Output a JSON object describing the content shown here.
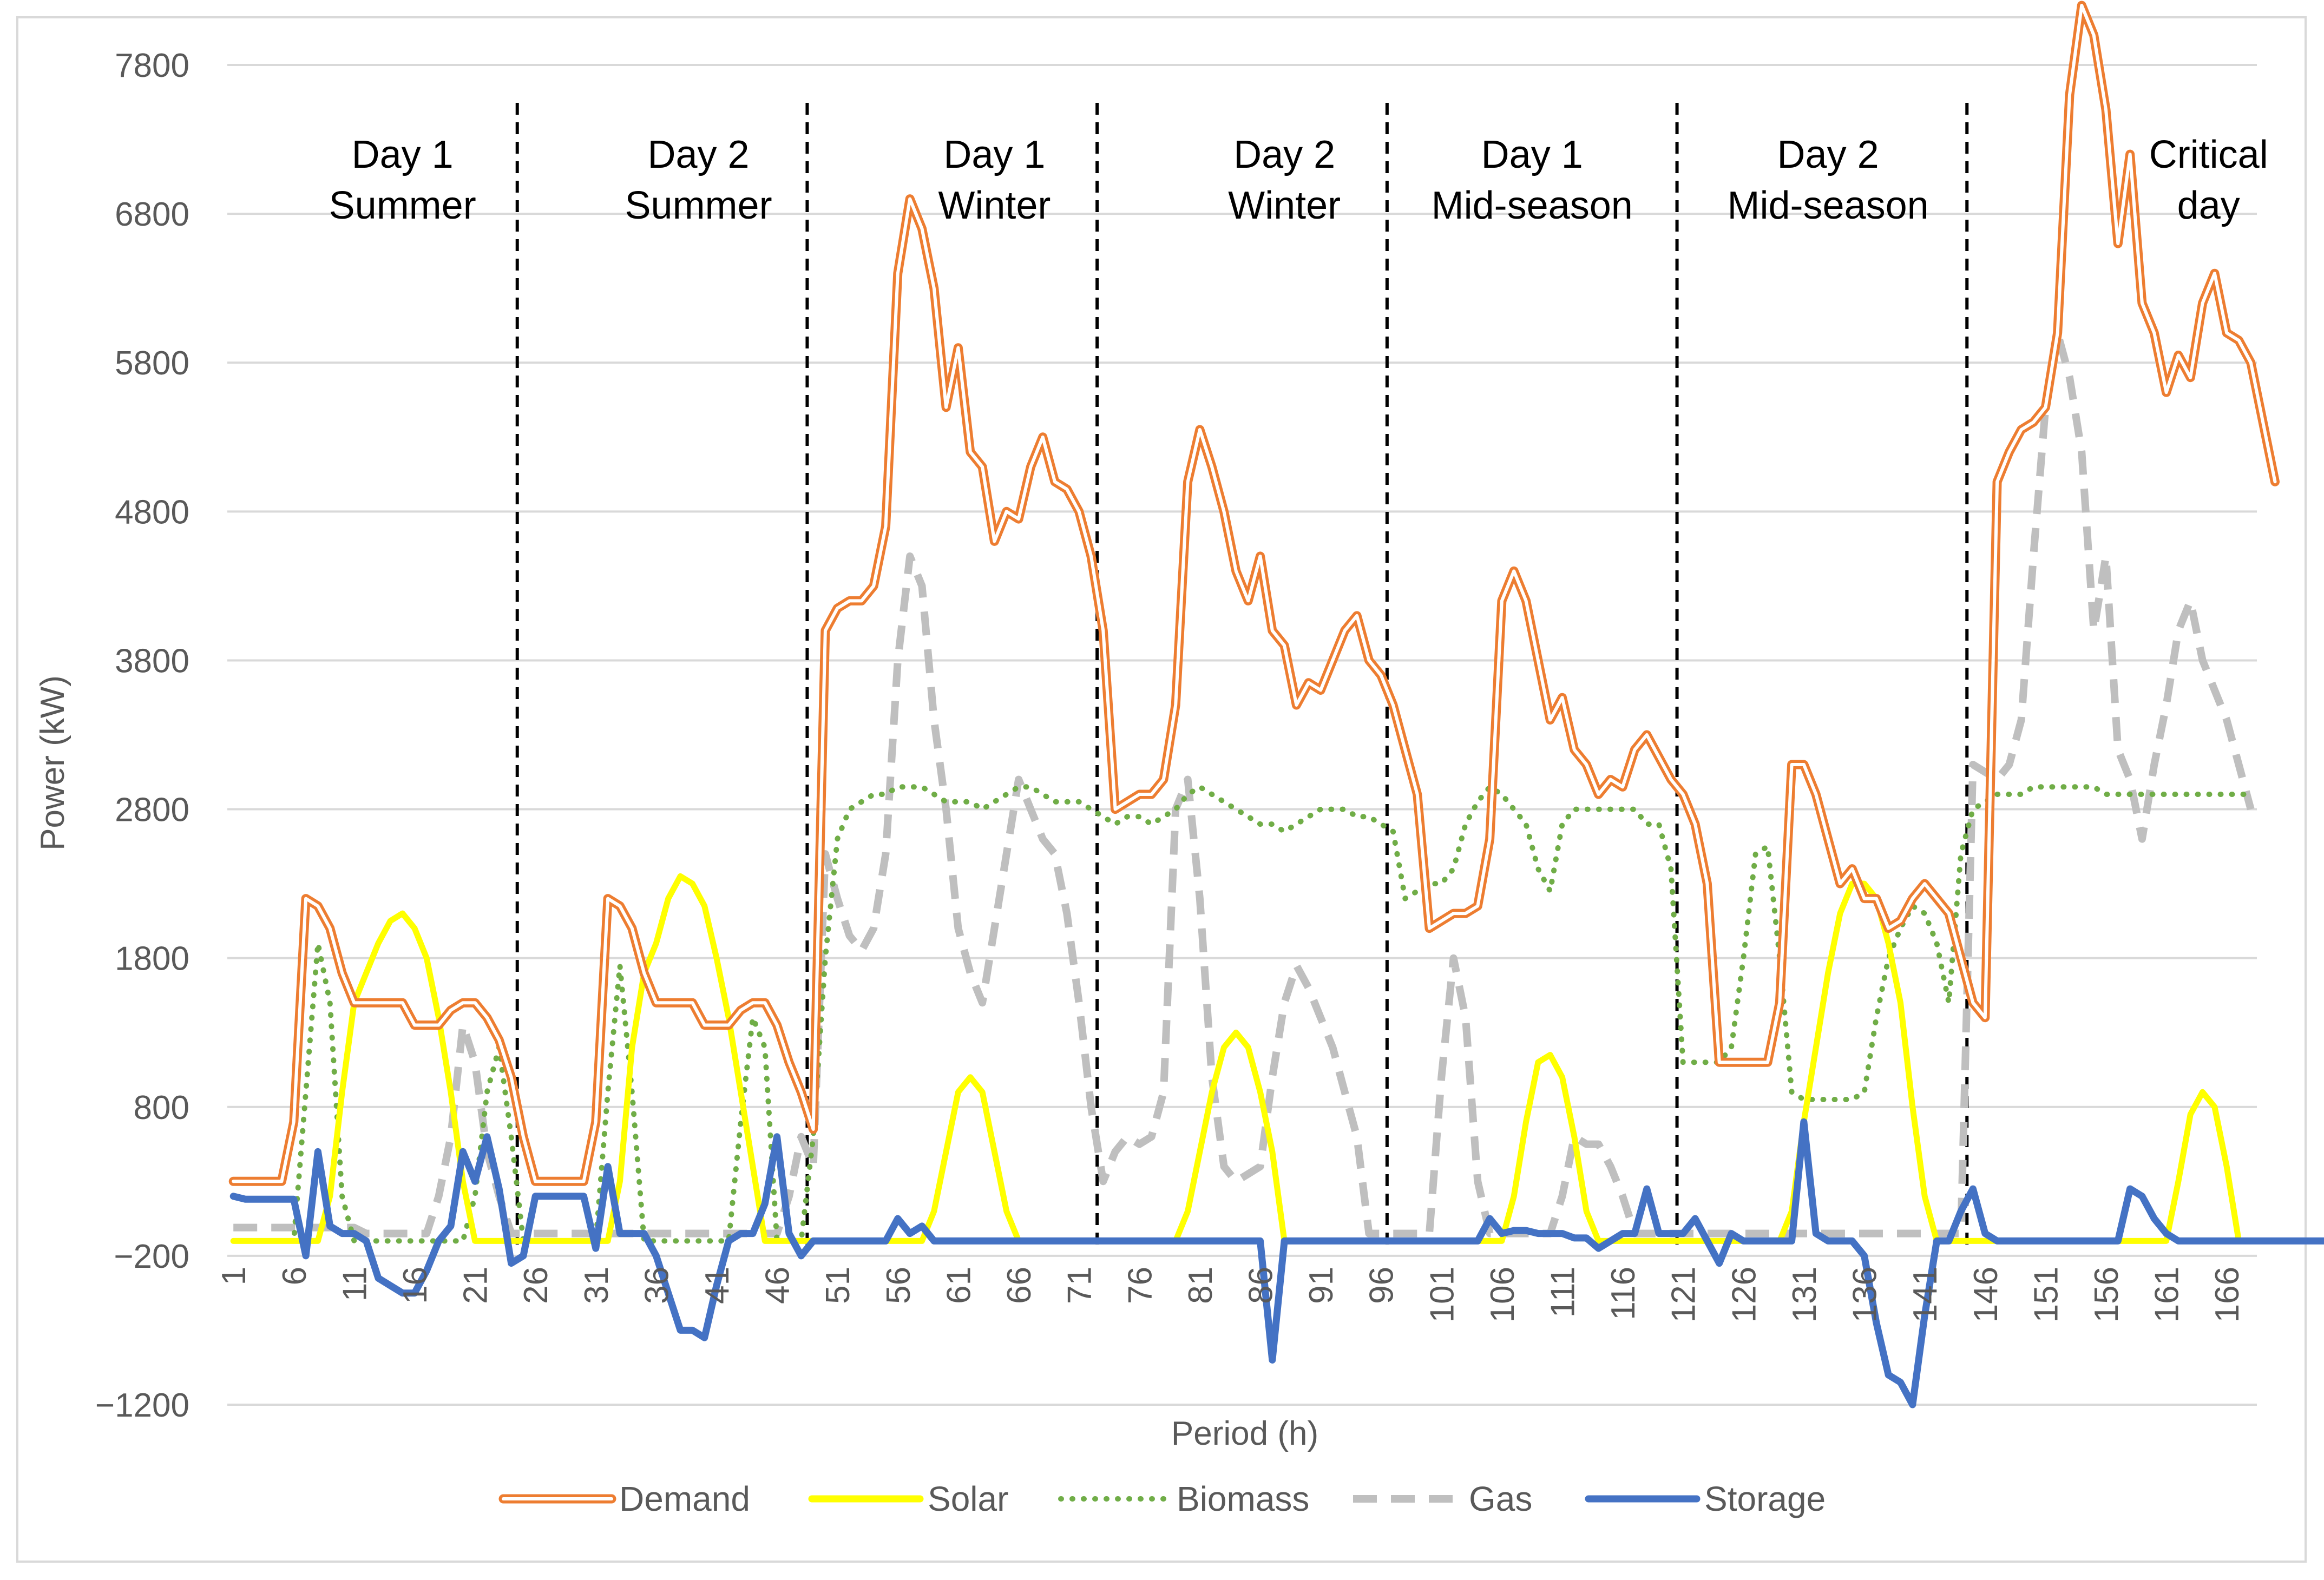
{
  "chart_data": {
    "type": "line",
    "xlabel": "Period (h)",
    "ylabel": "Power (kW)",
    "xlim": [
      1,
      168
    ],
    "ylim": [
      -1200,
      8200
    ],
    "y_ticks": [
      "−1200",
      "−200",
      "800",
      "1800",
      "2800",
      "3800",
      "4800",
      "5800",
      "6800",
      "7800"
    ],
    "y_tick_values": [
      -1200,
      -200,
      800,
      1800,
      2800,
      3800,
      4800,
      5800,
      6800,
      7800
    ],
    "x_ticks": [
      "1",
      "6",
      "11",
      "16",
      "21",
      "26",
      "31",
      "36",
      "41",
      "46",
      "51",
      "56",
      "61",
      "66",
      "71",
      "76",
      "81",
      "86",
      "91",
      "96",
      "101",
      "106",
      "111",
      "116",
      "121",
      "126",
      "131",
      "136",
      "141",
      "146",
      "151",
      "156",
      "161",
      "166"
    ],
    "x_tick_values": [
      1,
      6,
      11,
      16,
      21,
      26,
      31,
      36,
      41,
      46,
      51,
      56,
      61,
      66,
      71,
      76,
      81,
      86,
      91,
      96,
      101,
      106,
      111,
      116,
      121,
      126,
      131,
      136,
      141,
      146,
      151,
      156,
      161,
      166
    ],
    "gridlines": "horizontal",
    "legend_position": "bottom",
    "day_separators": [
      24.5,
      48.5,
      72.5,
      96.5,
      120.5,
      144.5
    ],
    "day_labels": [
      {
        "line1": "Day 1",
        "line2": "Summer",
        "center": 15
      },
      {
        "line1": "Day 2",
        "line2": "Summer",
        "center": 39.5
      },
      {
        "line1": "Day 1",
        "line2": "Winter",
        "center": 64
      },
      {
        "line1": "Day 2",
        "line2": "Winter",
        "center": 88
      },
      {
        "line1": "Day 1",
        "line2": "Mid-season",
        "center": 108.5
      },
      {
        "line1": "Day 2",
        "line2": "Mid-season",
        "center": 133
      },
      {
        "line1": "Critical",
        "line2": "day",
        "center": 164.5
      }
    ],
    "series": [
      {
        "name": "Demand",
        "color": "#ed7d31",
        "style": "double",
        "values": [
          300,
          300,
          300,
          300,
          300,
          700,
          2200,
          2150,
          2000,
          1700,
          1500,
          1500,
          1500,
          1500,
          1500,
          1350,
          1350,
          1350,
          1450,
          1500,
          1500,
          1400,
          1250,
          1000,
          600,
          300,
          300,
          300,
          300,
          300,
          700,
          2200,
          2150,
          2000,
          1700,
          1500,
          1500,
          1500,
          1500,
          1350,
          1350,
          1350,
          1450,
          1500,
          1500,
          1350,
          1100,
          900,
          650,
          4000,
          4150,
          4200,
          4200,
          4300,
          4700,
          6400,
          6900,
          6700,
          6300,
          5500,
          5900,
          5200,
          5100,
          4600,
          4800,
          4750,
          5100,
          5300,
          5000,
          4950,
          4800,
          4500,
          4000,
          2800,
          2850,
          2900,
          2900,
          3000,
          3500,
          5000,
          5350,
          5100,
          4800,
          4400,
          4200,
          4500,
          4000,
          3900,
          3500,
          3650,
          3600,
          3800,
          4000,
          4100,
          3800,
          3700,
          3500,
          3200,
          2900,
          2000,
          2050,
          2100,
          2100,
          2150,
          2600,
          4200,
          4400,
          4200,
          3800,
          3400,
          3550,
          3200,
          3100,
          2900,
          3000,
          2950,
          3200,
          3300,
          3150,
          3000,
          2900,
          2700,
          2300,
          1100,
          1100,
          1100,
          1100,
          1100,
          1500,
          3100,
          3100,
          2900,
          2600,
          2300,
          2400,
          2200,
          2200,
          2000,
          2050,
          2200,
          2300,
          2200,
          2100,
          1800,
          1500,
          1400,
          5000,
          5200,
          5350,
          5400,
          5500,
          6000,
          7600,
          8200,
          8000,
          7500,
          6600,
          7200,
          6200,
          6000,
          5600,
          5850,
          5700,
          6200,
          6400,
          6000,
          5950,
          5800,
          5400,
          5000
        ]
      },
      {
        "name": "Solar",
        "color": "#ffff00",
        "style": "solid",
        "values": [
          -100,
          -100,
          -100,
          -100,
          -100,
          -100,
          -100,
          -100,
          200,
          900,
          1500,
          1700,
          1900,
          2050,
          2100,
          2000,
          1800,
          1400,
          900,
          300,
          -100,
          -100,
          -100,
          -100,
          -100,
          -100,
          -100,
          -100,
          -100,
          -100,
          -100,
          -100,
          300,
          1200,
          1700,
          1900,
          2200,
          2350,
          2300,
          2150,
          1800,
          1400,
          900,
          400,
          -100,
          -100,
          -100,
          -100,
          -100,
          -100,
          -100,
          -100,
          -100,
          -100,
          -100,
          -100,
          -100,
          -100,
          100,
          500,
          900,
          1000,
          900,
          500,
          100,
          -100,
          -100,
          -100,
          -100,
          -100,
          -100,
          -100,
          -100,
          -100,
          -100,
          -100,
          -100,
          -100,
          -100,
          100,
          500,
          900,
          1200,
          1300,
          1200,
          900,
          500,
          -100,
          -100,
          -100,
          -100,
          -100,
          -100,
          -100,
          -100,
          -100,
          -100,
          -100,
          -100,
          -100,
          -100,
          -100,
          -100,
          -100,
          -100,
          -100,
          200,
          700,
          1100,
          1150,
          1000,
          600,
          100,
          -100,
          -100,
          -100,
          -100,
          -100,
          -100,
          -100,
          -100,
          -100,
          -100,
          -100,
          -100,
          -100,
          -100,
          -100,
          -100,
          100,
          700,
          1200,
          1700,
          2100,
          2300,
          2300,
          2200,
          1900,
          1500,
          800,
          200,
          -100,
          -100,
          -100,
          -100,
          -100,
          -100,
          -100,
          -100,
          -100,
          -100,
          -100,
          -100,
          -100,
          -100,
          -100,
          -100,
          -100,
          -100,
          -100,
          -100,
          300,
          750,
          900,
          800,
          400,
          -100,
          -100,
          -100,
          -100,
          -100,
          -100,
          -100,
          -100,
          -100
        ]
      },
      {
        "name": "Biomass",
        "color": "#70ad47",
        "style": "dotted",
        "values": [
          -100,
          -100,
          -100,
          -100,
          -100,
          -100,
          900,
          1900,
          1500,
          200,
          -100,
          -100,
          -100,
          -100,
          -100,
          -100,
          -100,
          -100,
          -100,
          -100,
          200,
          900,
          1200,
          600,
          -100,
          -100,
          -100,
          -100,
          -100,
          -100,
          -100,
          900,
          1750,
          900,
          -100,
          -100,
          -100,
          -100,
          -100,
          -100,
          -100,
          -100,
          700,
          1400,
          1200,
          -100,
          -100,
          -100,
          600,
          1800,
          2600,
          2800,
          2850,
          2900,
          2900,
          2950,
          2950,
          2950,
          2900,
          2850,
          2850,
          2850,
          2800,
          2850,
          2900,
          2950,
          2950,
          2900,
          2850,
          2850,
          2850,
          2800,
          2750,
          2700,
          2750,
          2750,
          2700,
          2750,
          2800,
          2900,
          2950,
          2900,
          2850,
          2800,
          2750,
          2700,
          2700,
          2650,
          2700,
          2750,
          2800,
          2800,
          2800,
          2750,
          2750,
          2700,
          2650,
          2200,
          2250,
          2300,
          2300,
          2400,
          2700,
          2850,
          2950,
          2900,
          2800,
          2700,
          2400,
          2250,
          2700,
          2800,
          2800,
          2800,
          2800,
          2800,
          2800,
          2700,
          2700,
          2400,
          1100,
          1100,
          1100,
          1100,
          1200,
          1800,
          2500,
          2550,
          1800,
          900,
          850,
          850,
          850,
          850,
          850,
          900,
          1400,
          1800,
          2000,
          2150,
          2100,
          1900,
          1500,
          2500,
          2800,
          2850,
          2900,
          2900,
          2900,
          2950,
          2950,
          2950,
          2950,
          2950,
          2950,
          2900,
          2900,
          2900,
          2900,
          2900,
          2900,
          2900,
          2900,
          2900,
          2900,
          2900,
          2900,
          2900
        ]
      },
      {
        "name": "Gas",
        "color": "#bfbfbf",
        "style": "dashed",
        "values": [
          -10,
          -10,
          -10,
          -10,
          -10,
          -10,
          -10,
          -10,
          -10,
          -10,
          -10,
          -50,
          -50,
          -50,
          -50,
          -50,
          -50,
          200,
          600,
          1350,
          1100,
          500,
          200,
          -50,
          -50,
          -50,
          -50,
          -50,
          -50,
          -50,
          -50,
          -50,
          -50,
          -50,
          -50,
          -50,
          -50,
          -50,
          -50,
          -50,
          -50,
          -50,
          -50,
          -50,
          -50,
          -50,
          200,
          600,
          400,
          2500,
          2200,
          1950,
          1850,
          2000,
          2500,
          3800,
          4500,
          4300,
          3400,
          2800,
          2000,
          1700,
          1500,
          2000,
          2500,
          3000,
          2800,
          2600,
          2500,
          2100,
          1500,
          800,
          300,
          500,
          600,
          550,
          600,
          900,
          2800,
          3000,
          2200,
          1000,
          400,
          300,
          350,
          400,
          1000,
          1500,
          1750,
          1600,
          1400,
          1200,
          900,
          600,
          -50,
          -50,
          -50,
          -50,
          -50,
          -50,
          1000,
          1800,
          1400,
          300,
          -50,
          -50,
          -50,
          -50,
          -50,
          -50,
          200,
          600,
          550,
          550,
          400,
          200,
          -50,
          -50,
          -50,
          -50,
          -50,
          -50,
          -50,
          -50,
          -50,
          -50,
          -50,
          -50,
          -50,
          -50,
          -50,
          -50,
          -50,
          -50,
          -50,
          -50,
          -50,
          -50,
          -50,
          -50,
          -50,
          -50,
          -50,
          -50,
          3100,
          3050,
          3000,
          3100,
          3400,
          4500,
          5500,
          6000,
          5700,
          5200,
          4000,
          4500,
          3200,
          3000,
          2600,
          3100,
          3500,
          4000,
          4200,
          3800,
          3600,
          3400,
          3100,
          2800
        ]
      },
      {
        "name": "Storage",
        "color": "#4472c4",
        "style": "solid",
        "values": [
          200,
          180,
          180,
          180,
          180,
          180,
          -200,
          500,
          0,
          -50,
          -50,
          -100,
          -350,
          -400,
          -450,
          -450,
          -300,
          -100,
          0,
          500,
          300,
          600,
          250,
          -250,
          -200,
          200,
          200,
          200,
          200,
          200,
          -150,
          400,
          -50,
          -50,
          -50,
          -200,
          -450,
          -700,
          -700,
          -750,
          -400,
          -100,
          -50,
          -50,
          150,
          600,
          -50,
          -200,
          -100,
          -100,
          -100,
          -100,
          -100,
          -100,
          -100,
          50,
          -50,
          0,
          -100,
          -100,
          -100,
          -100,
          -100,
          -100,
          -100,
          -100,
          -100,
          -100,
          -100,
          -100,
          -100,
          -100,
          -100,
          -100,
          -100,
          -100,
          -100,
          -100,
          -100,
          -100,
          -100,
          -100,
          -100,
          -100,
          -100,
          -100,
          -900,
          -100,
          -100,
          -100,
          -100,
          -100,
          -100,
          -100,
          -100,
          -100,
          -100,
          -100,
          -100,
          -100,
          -100,
          -100,
          -100,
          -100,
          50,
          -50,
          -30,
          -30,
          -50,
          -50,
          -50,
          -80,
          -80,
          -150,
          -100,
          -50,
          -50,
          250,
          -50,
          -50,
          -50,
          50,
          -100,
          -250,
          -50,
          -100,
          -100,
          -100,
          -100,
          -100,
          700,
          -50,
          -100,
          -100,
          -100,
          -200,
          -650,
          -1000,
          -1050,
          -1200,
          -600,
          -100,
          -100,
          100,
          250,
          -50,
          -100,
          -100,
          -100,
          -100,
          -100,
          -100,
          -100,
          -100,
          -100,
          -100,
          -100,
          250,
          200,
          50,
          -50,
          -100,
          -100,
          -100,
          -100,
          -100,
          -100,
          -100,
          -100,
          -100,
          -100,
          -100,
          -100,
          -100,
          -100
        ]
      }
    ]
  }
}
